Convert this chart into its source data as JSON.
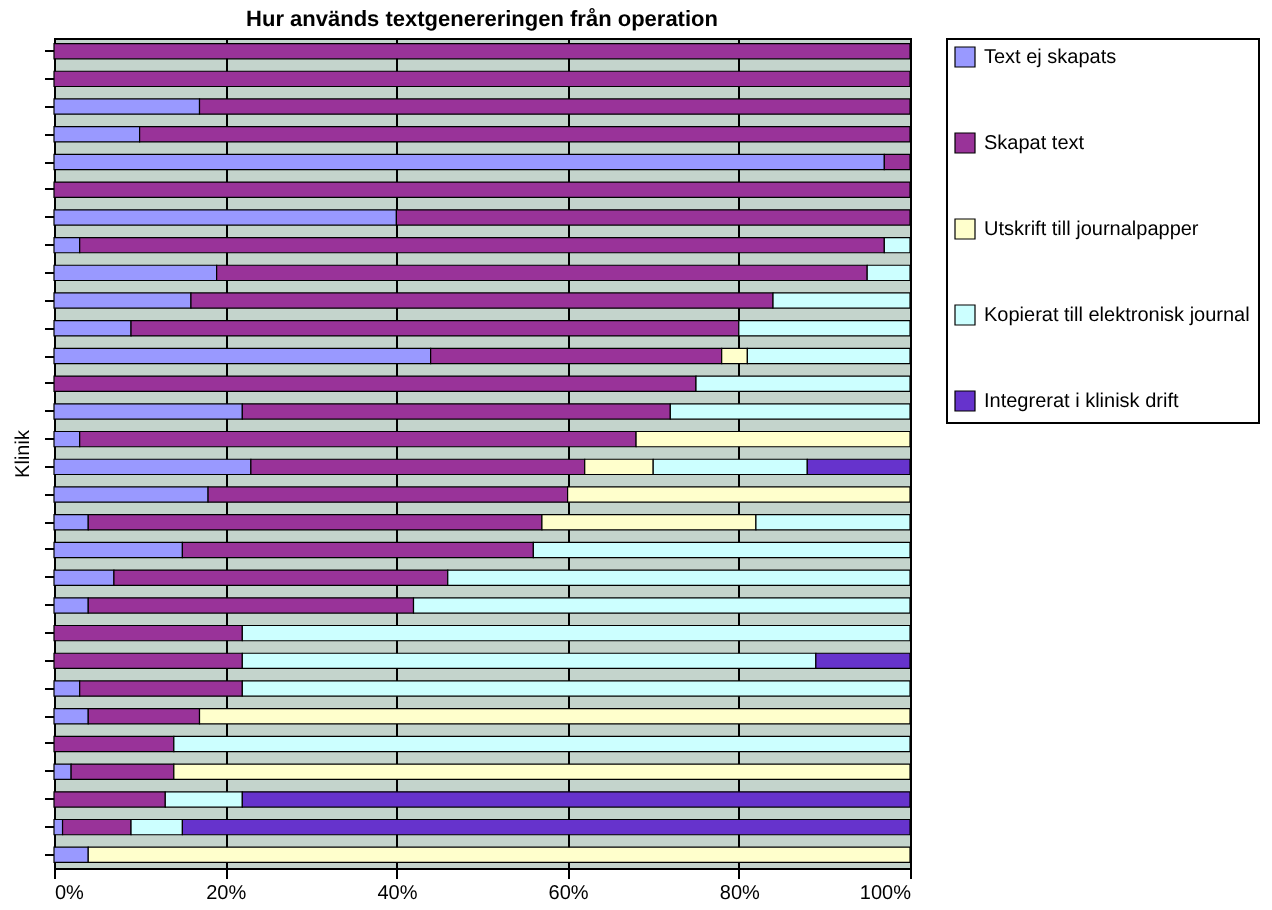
{
  "chart_data": {
    "type": "bar",
    "orientation": "horizontal",
    "stacked": true,
    "title": "Hur används textgenereringen från operation",
    "ylabel": "Klinik",
    "categories": [
      null,
      null,
      null,
      null,
      null,
      null,
      null,
      null,
      null,
      null,
      null,
      null,
      null,
      null,
      null,
      null,
      null,
      null,
      null,
      null,
      null,
      null,
      null,
      null,
      null,
      null,
      null,
      null,
      null,
      null
    ],
    "series": [
      {
        "name": "Text ej skapats",
        "color": "#9999ff",
        "values": [
          0,
          0,
          17,
          10,
          97,
          0,
          40,
          3,
          19,
          16,
          9,
          44,
          0,
          22,
          3,
          23,
          18,
          4,
          15,
          7,
          4,
          0,
          0,
          3,
          4,
          0,
          2,
          0,
          1,
          4
        ]
      },
      {
        "name": "Skapat text",
        "color": "#993399",
        "values": [
          100,
          100,
          83,
          90,
          3,
          100,
          60,
          94,
          76,
          68,
          71,
          34,
          75,
          50,
          65,
          39,
          42,
          53,
          41,
          39,
          38,
          22,
          22,
          19,
          13,
          14,
          12,
          13,
          8,
          0
        ]
      },
      {
        "name": "Utskrift till journalpapper",
        "color": "#ffffcc",
        "values": [
          0,
          0,
          0,
          0,
          0,
          0,
          0,
          0,
          0,
          0,
          0,
          3,
          0,
          0,
          32,
          8,
          40,
          25,
          0,
          0,
          0,
          0,
          0,
          0,
          83,
          0,
          86,
          0,
          0,
          96
        ]
      },
      {
        "name": "Kopierat till elektronisk journal",
        "color": "#ccffff",
        "values": [
          0,
          0,
          0,
          0,
          0,
          0,
          0,
          3,
          5,
          16,
          20,
          19,
          25,
          28,
          0,
          18,
          0,
          18,
          44,
          54,
          58,
          78,
          67,
          78,
          0,
          86,
          0,
          9,
          6,
          0
        ]
      },
      {
        "name": "Integrerat i klinisk drift",
        "color": "#6633cc",
        "values": [
          0,
          0,
          0,
          0,
          0,
          0,
          0,
          0,
          0,
          0,
          0,
          0,
          0,
          0,
          0,
          12,
          0,
          0,
          0,
          0,
          0,
          0,
          11,
          0,
          0,
          0,
          0,
          78,
          85,
          0
        ]
      }
    ],
    "xlim": [
      0,
      100
    ],
    "xticks": [
      {
        "value": 0,
        "label": "0%"
      },
      {
        "value": 20,
        "label": "20%"
      },
      {
        "value": 40,
        "label": "40%"
      },
      {
        "value": 60,
        "label": "60%"
      },
      {
        "value": 80,
        "label": "80%"
      },
      {
        "value": 100,
        "label": "100%"
      }
    ],
    "grid": "x",
    "legend": "right"
  }
}
